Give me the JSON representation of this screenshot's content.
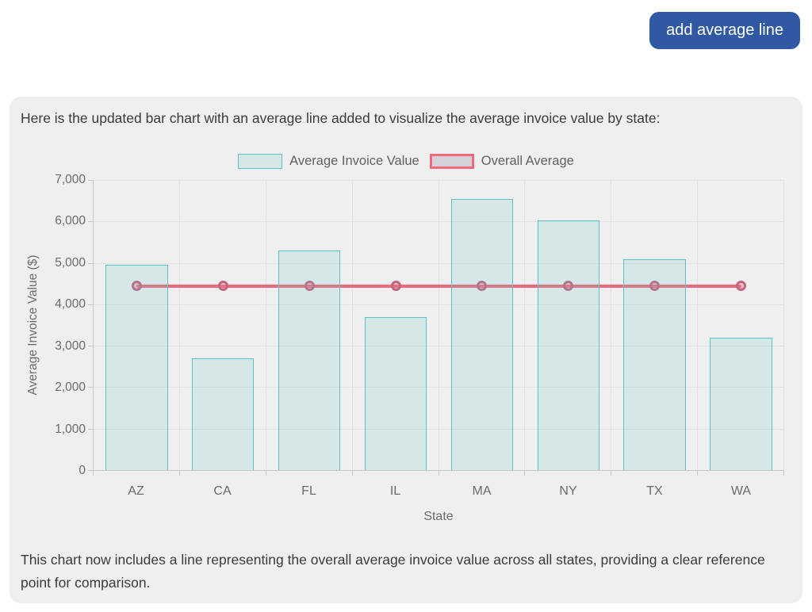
{
  "toolbar": {
    "add_average_button": "add average line"
  },
  "card": {
    "intro_text": "Here is the updated bar chart with an average line added to visualize the average invoice value by state:",
    "footer_text": "This chart now includes a line representing the overall average invoice value across all states, providing a clear reference point for comparison."
  },
  "chart_data": {
    "type": "bar",
    "title": "",
    "categories": [
      "AZ",
      "CA",
      "FL",
      "IL",
      "MA",
      "NY",
      "TX",
      "WA"
    ],
    "series": [
      {
        "name": "Average Invoice Value",
        "type": "bar",
        "values": [
          4960,
          2700,
          5300,
          3700,
          6550,
          6030,
          5080,
          3200
        ]
      },
      {
        "name": "Overall Average",
        "type": "line",
        "values": [
          4440,
          4440,
          4440,
          4440,
          4440,
          4440,
          4440,
          4440
        ]
      }
    ],
    "overall_average": 4440,
    "xlabel": "State",
    "ylabel": "Average Invoice Value ($)",
    "ylim": [
      0,
      7000
    ],
    "ytick_step": 1000,
    "ytick_labels": [
      "0",
      "1,000",
      "2,000",
      "3,000",
      "4,000",
      "5,000",
      "6,000",
      "7,000"
    ],
    "grid": true,
    "legend_position": "top"
  },
  "colors": {
    "button_bg": "#3158a3",
    "button_text": "#ffffff",
    "card_bg": "#efefef",
    "bar_fill_visible": "#d8e9e7",
    "bar_border": "#5ec2c4",
    "average_line": "#f0697f",
    "marker_ring": "#c2657f",
    "legend_line_fill": "#d4d2d8",
    "grid": "#e1e1e1",
    "axis": "#c8c8c8",
    "tick_text": "#6b6b6b",
    "body_text": "#3b3b3b"
  }
}
